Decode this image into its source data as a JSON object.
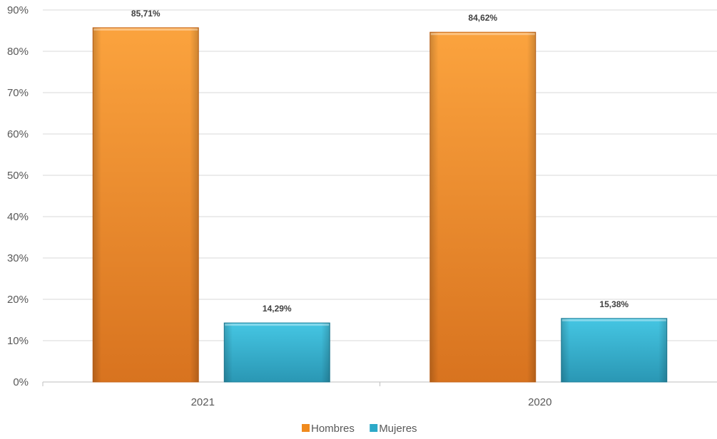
{
  "chart_data": {
    "type": "bar",
    "categories": [
      "2021",
      "2020"
    ],
    "series": [
      {
        "name": "Hombres",
        "values": [
          85.71,
          84.62
        ],
        "labels": [
          "85,71%",
          "84,62%"
        ],
        "color": "#F79A2E"
      },
      {
        "name": "Mujeres",
        "values": [
          14.29,
          15.38
        ],
        "labels": [
          "14,29%",
          "15,38%"
        ],
        "color": "#33B8D6"
      }
    ],
    "y_ticks": [
      "0%",
      "10%",
      "20%",
      "30%",
      "40%",
      "50%",
      "60%",
      "70%",
      "80%",
      "90%"
    ],
    "ylim": [
      0,
      90
    ],
    "grid": true,
    "legend": "bottom"
  }
}
